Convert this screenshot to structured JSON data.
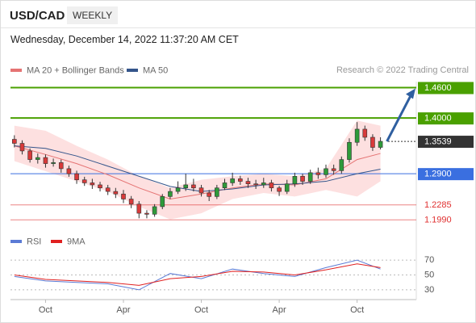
{
  "header": {
    "symbol": "USD/CAD",
    "period": "WEEKLY",
    "timestamp": "Wednesday, December 14, 2022 11:37:20 AM CET"
  },
  "chart_data": {
    "type": "candlestick",
    "credit": "Research © 2022 Trading Central",
    "ylim": [
      1.185,
      1.472
    ],
    "xlim": [
      -0.5,
      51.6
    ],
    "xticks": [
      {
        "value": 4,
        "label": "Oct"
      },
      {
        "value": 14,
        "label": "Apr"
      },
      {
        "value": 24,
        "label": "Oct"
      },
      {
        "value": 34,
        "label": "Apr"
      },
      {
        "value": 44,
        "label": "Oct"
      }
    ],
    "candles": {
      "up_color": "#2e9a3a",
      "down_color": "#d83a3a",
      "open": [
        1.358,
        1.35,
        1.335,
        1.318,
        1.322,
        1.31,
        1.312,
        1.3,
        1.29,
        1.278,
        1.272,
        1.268,
        1.262,
        1.255,
        1.25,
        1.24,
        1.23,
        1.212,
        1.21,
        1.225,
        1.245,
        1.255,
        1.262,
        1.268,
        1.262,
        1.252,
        1.245,
        1.262,
        1.272,
        1.28,
        1.275,
        1.27,
        1.268,
        1.272,
        1.262,
        1.255,
        1.27,
        1.285,
        1.275,
        1.292,
        1.288,
        1.3,
        1.296,
        1.318,
        1.352,
        1.378,
        1.362,
        1.342
      ],
      "high": [
        1.366,
        1.356,
        1.34,
        1.33,
        1.328,
        1.32,
        1.318,
        1.306,
        1.296,
        1.284,
        1.28,
        1.274,
        1.268,
        1.262,
        1.258,
        1.246,
        1.236,
        1.218,
        1.23,
        1.25,
        1.262,
        1.275,
        1.29,
        1.28,
        1.268,
        1.258,
        1.268,
        1.28,
        1.292,
        1.286,
        1.282,
        1.278,
        1.282,
        1.278,
        1.266,
        1.278,
        1.292,
        1.29,
        1.298,
        1.302,
        1.308,
        1.308,
        1.324,
        1.36,
        1.392,
        1.385,
        1.368,
        1.362
      ],
      "low": [
        1.342,
        1.328,
        1.312,
        1.31,
        1.302,
        1.304,
        1.292,
        1.284,
        1.27,
        1.266,
        1.26,
        1.255,
        1.248,
        1.242,
        1.232,
        1.222,
        1.202,
        1.202,
        1.205,
        1.22,
        1.24,
        1.25,
        1.256,
        1.255,
        1.245,
        1.236,
        1.24,
        1.258,
        1.266,
        1.268,
        1.262,
        1.26,
        1.262,
        1.255,
        1.246,
        1.25,
        1.264,
        1.268,
        1.27,
        1.28,
        1.282,
        1.288,
        1.29,
        1.312,
        1.345,
        1.355,
        1.335,
        1.338
      ],
      "close": [
        1.35,
        1.335,
        1.318,
        1.322,
        1.31,
        1.312,
        1.3,
        1.29,
        1.278,
        1.272,
        1.268,
        1.262,
        1.255,
        1.25,
        1.24,
        1.23,
        1.212,
        1.21,
        1.225,
        1.245,
        1.255,
        1.262,
        1.268,
        1.262,
        1.252,
        1.245,
        1.262,
        1.272,
        1.28,
        1.275,
        1.27,
        1.268,
        1.272,
        1.262,
        1.255,
        1.27,
        1.285,
        1.275,
        1.292,
        1.288,
        1.3,
        1.296,
        1.318,
        1.352,
        1.378,
        1.362,
        1.342,
        1.354
      ]
    },
    "ma_x": [
      0,
      4,
      8,
      12,
      16,
      20,
      24,
      28,
      32,
      36,
      40,
      44,
      47
    ],
    "series": [
      {
        "name": "MA 20 + Bollinger Bands",
        "color": "#e57373",
        "band_color": "#fde0e0",
        "values": [
          1.345,
          1.328,
          1.31,
          1.288,
          1.262,
          1.24,
          1.25,
          1.262,
          1.27,
          1.268,
          1.28,
          1.318,
          1.33
        ],
        "band_upper": [
          1.385,
          1.375,
          1.345,
          1.318,
          1.285,
          1.262,
          1.278,
          1.285,
          1.29,
          1.285,
          1.3,
          1.395,
          1.385
        ],
        "band_lower": [
          1.315,
          1.295,
          1.275,
          1.255,
          1.225,
          1.2,
          1.212,
          1.24,
          1.252,
          1.245,
          1.258,
          1.245,
          1.275
        ]
      },
      {
        "name": "MA 50",
        "color": "#34558b",
        "values": [
          1.345,
          1.34,
          1.325,
          1.305,
          1.285,
          1.265,
          1.255,
          1.26,
          1.268,
          1.27,
          1.275,
          1.29,
          1.299
        ]
      }
    ],
    "levels": [
      {
        "value": 1.46,
        "label": "1.4600",
        "color": "#4aa000",
        "boxed": true
      },
      {
        "value": 1.4,
        "label": "1.4000",
        "color": "#4aa000",
        "boxed": true
      },
      {
        "value": 1.3539,
        "label": "1.3539",
        "color": "#333333",
        "boxed": true
      },
      {
        "value": 1.29,
        "label": "1.2900",
        "color": "#3a6fe0",
        "boxed": true
      },
      {
        "value": 1.2285,
        "label": "1.2285",
        "color": "#e03030",
        "boxed": false
      },
      {
        "value": 1.199,
        "label": "1.1990",
        "color": "#e03030",
        "boxed": false
      }
    ],
    "rsi": {
      "ylim": [
        19,
        80
      ],
      "yticks": [
        70,
        50,
        30
      ],
      "series": [
        {
          "name": "RSI",
          "color": "#5b7bd5",
          "values": [
            48,
            42,
            40,
            38,
            30,
            52,
            45,
            58,
            52,
            48,
            60,
            70,
            58
          ]
        },
        {
          "name": "9MA",
          "color": "#e02020",
          "values": [
            50,
            44,
            42,
            40,
            36,
            45,
            48,
            55,
            54,
            50,
            57,
            65,
            60
          ]
        }
      ]
    }
  }
}
